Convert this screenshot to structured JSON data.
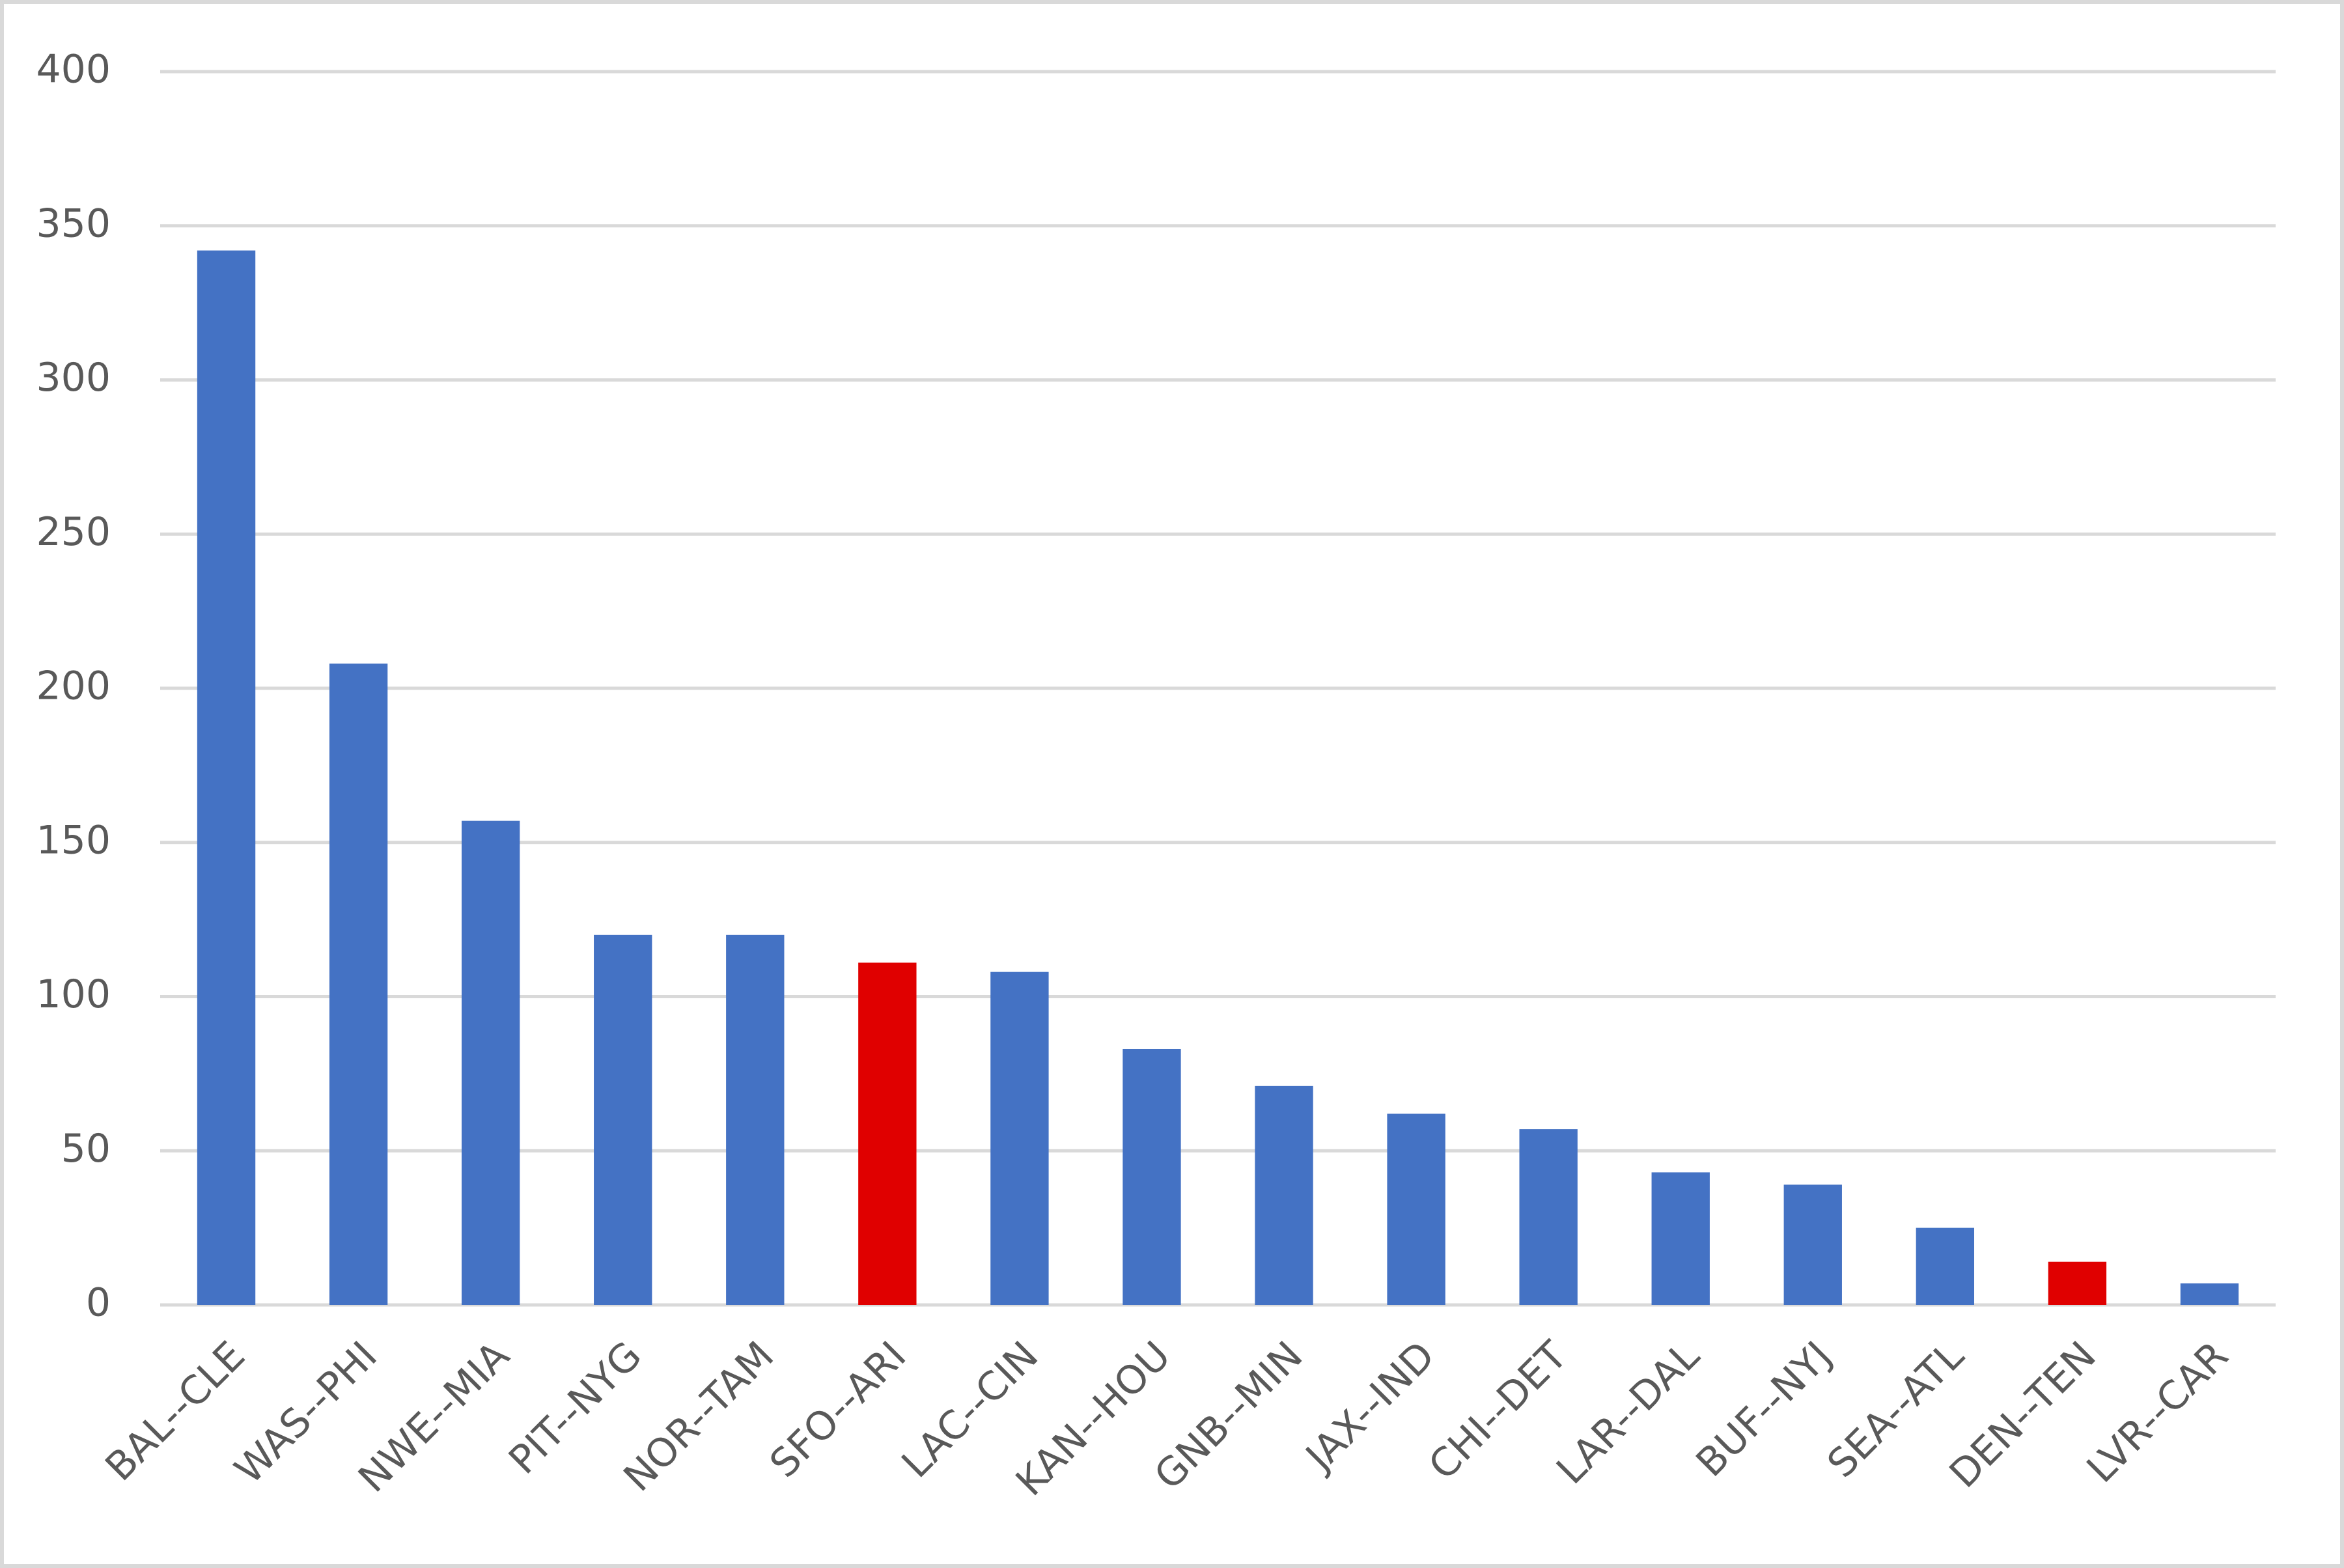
{
  "chart_data": {
    "type": "bar",
    "categories": [
      "BAL--CLE",
      "WAS--PHI",
      "NWE--MIA",
      "PIT--NYG",
      "NOR--TAM",
      "SFO--ARI",
      "LAC--CIN",
      "KAN--HOU",
      "GNB--MIN",
      "JAX--IND",
      "CHI--DET",
      "LAR--DAL",
      "BUF--NYJ",
      "SEA--ATL",
      "DEN--TEN",
      "LVR--CAR"
    ],
    "values": [
      342,
      208,
      157,
      120,
      120,
      111,
      108,
      83,
      71,
      62,
      57,
      43,
      39,
      25,
      14,
      7
    ],
    "colors": [
      "#4472c4",
      "#4472c4",
      "#4472c4",
      "#4472c4",
      "#4472c4",
      "#e00000",
      "#4472c4",
      "#4472c4",
      "#4472c4",
      "#4472c4",
      "#4472c4",
      "#4472c4",
      "#4472c4",
      "#4472c4",
      "#e00000",
      "#4472c4"
    ],
    "ylim": [
      0,
      400
    ],
    "yticks": [
      0,
      50,
      100,
      150,
      200,
      250,
      300,
      350,
      400
    ],
    "grid": true
  }
}
